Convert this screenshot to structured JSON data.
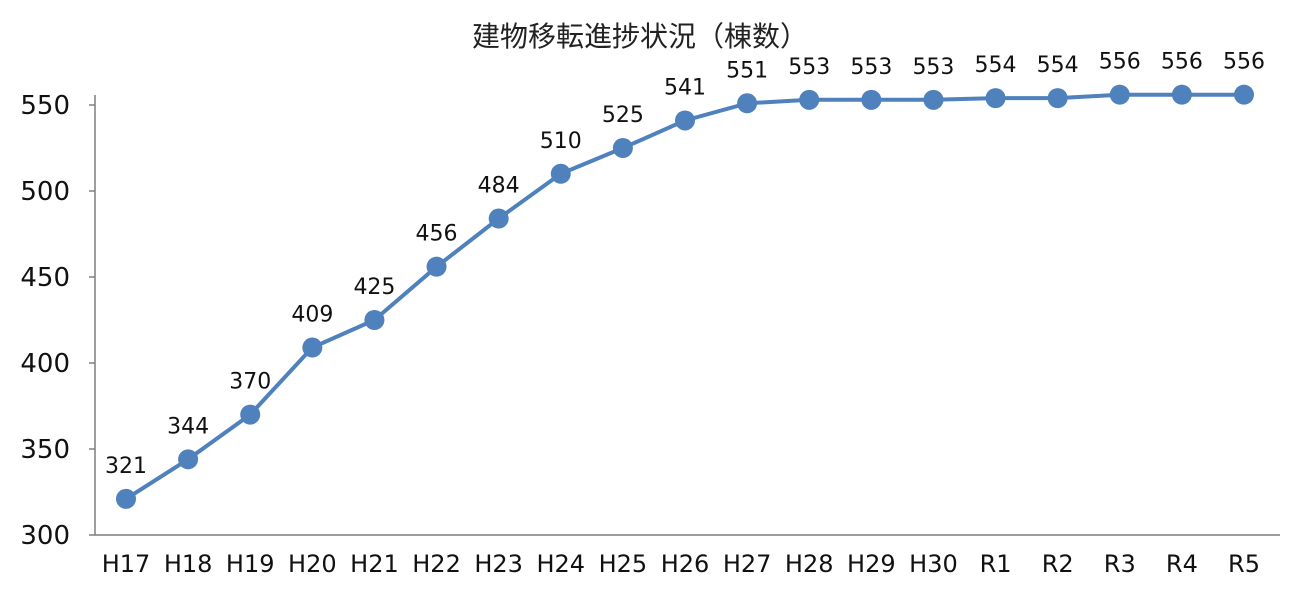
{
  "chart_data": {
    "type": "line",
    "title": "建物移転進捗状況（棟数）",
    "xlabel": "",
    "ylabel": "",
    "categories": [
      "H17",
      "H18",
      "H19",
      "H20",
      "H21",
      "H22",
      "H23",
      "H24",
      "H25",
      "H26",
      "H27",
      "H28",
      "H29",
      "H30",
      "R1",
      "R2",
      "R3",
      "R4",
      "R5"
    ],
    "series": [
      {
        "values": [
          321,
          344,
          370,
          409,
          425,
          456,
          484,
          510,
          525,
          541,
          551,
          553,
          553,
          553,
          554,
          554,
          556,
          556,
          556
        ]
      }
    ],
    "ylim": [
      300,
      550
    ],
    "yticks": [
      300,
      350,
      400,
      450,
      500,
      550
    ],
    "data_labels": true,
    "grid": false,
    "legend": "none",
    "colors": {
      "line": "#4f81bd",
      "marker": "#4f81bd",
      "axis": "#7f7f7f"
    }
  }
}
